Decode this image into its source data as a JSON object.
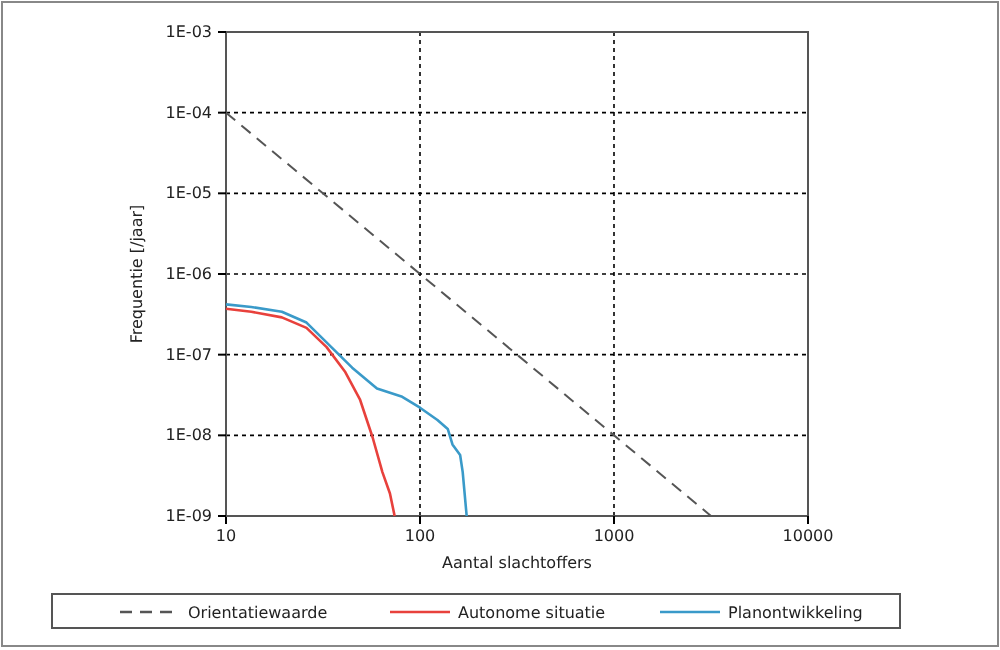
{
  "chart_data": {
    "type": "line",
    "xlabel": "Aantal slachtoffers",
    "ylabel": "Frequentie [/jaar]",
    "log": "xy",
    "grid": true,
    "legend": "bottom",
    "xlim": [
      10,
      10000
    ],
    "xticks": [
      10,
      100,
      1000,
      10000
    ],
    "ylim": [
      1e-09,
      0.001
    ],
    "yticks": [
      {
        "value": 1e-09,
        "label": "1E-09"
      },
      {
        "value": 1e-08,
        "label": "1E-08"
      },
      {
        "value": 1e-07,
        "label": "1E-07"
      },
      {
        "value": 1e-06,
        "label": "1E-06"
      },
      {
        "value": 1e-05,
        "label": "1E-05"
      },
      {
        "value": 0.0001,
        "label": "1E-04"
      },
      {
        "value": 0.001,
        "label": "1E-03"
      }
    ],
    "series": [
      {
        "name": "Orientatiewaarde",
        "color": "#555555",
        "line_style": "dashed",
        "x": [
          10,
          3162
        ],
        "values": [
          0.0001,
          1e-09
        ]
      },
      {
        "name": "Autonome situatie",
        "color": "#e8413c",
        "x": [
          10,
          13.5,
          19.4,
          26,
          33,
          41,
          49,
          57,
          64,
          70,
          74
        ],
        "values": [
          3.7e-07,
          3.4e-07,
          2.9e-07,
          2.15e-07,
          1.24e-07,
          6.2e-08,
          2.8e-08,
          9.4e-09,
          3.5e-09,
          1.9e-09,
          1e-09
        ]
      },
      {
        "name": "Planontwikkeling",
        "color": "#3a9ac9",
        "x": [
          10,
          13.5,
          19.4,
          26,
          37.3,
          44.7,
          60,
          81,
          100,
          123,
          139,
          147,
          161,
          166,
          174
        ],
        "values": [
          4.2e-07,
          3.9e-07,
          3.4e-07,
          2.5e-07,
          1.06e-07,
          6.9e-08,
          3.8e-08,
          3e-08,
          2.2e-08,
          1.55e-08,
          1.2e-08,
          7.7e-09,
          5.7e-09,
          3.5e-09,
          1e-09
        ]
      }
    ]
  }
}
